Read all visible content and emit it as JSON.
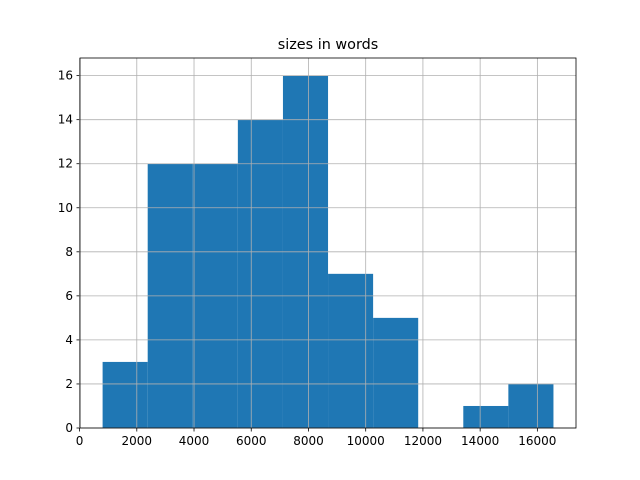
{
  "chart_data": {
    "type": "histogram",
    "title": "sizes in words",
    "bins": [
      805,
      2381,
      3956,
      5532,
      7108,
      8684,
      10259,
      11835,
      13411,
      14986,
      16562
    ],
    "values": [
      3,
      12,
      12,
      14,
      16,
      7,
      5,
      0,
      1,
      2
    ],
    "color": "#1f77b4",
    "xlim": [
      15,
      17350
    ],
    "xticks": [
      0,
      2000,
      4000,
      6000,
      8000,
      10000,
      12000,
      14000,
      16000
    ],
    "ylim": [
      0,
      16.8
    ],
    "yticks": [
      0,
      2,
      4,
      6,
      8,
      10,
      12,
      14,
      16
    ],
    "grid": true
  }
}
